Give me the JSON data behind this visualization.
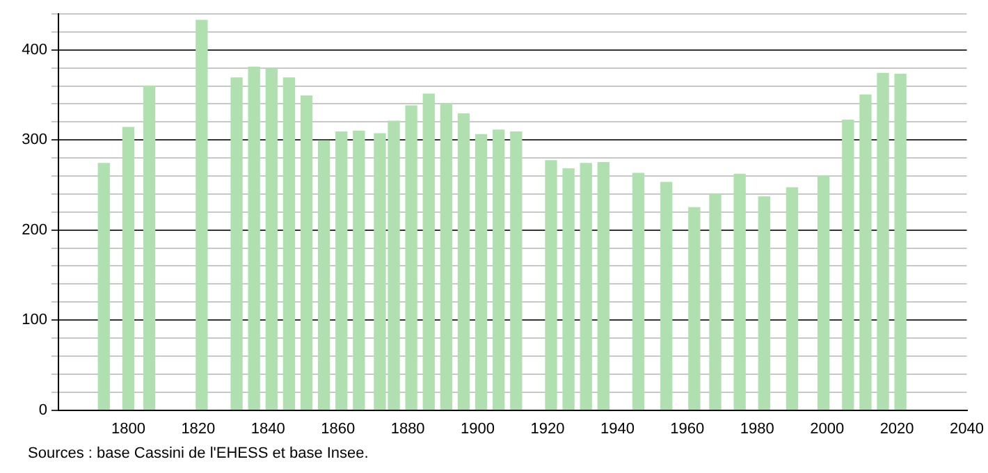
{
  "chart_data": {
    "type": "bar",
    "x": [
      1793,
      1800,
      1806,
      1821,
      1831,
      1836,
      1841,
      1846,
      1851,
      1856,
      1861,
      1866,
      1872,
      1876,
      1881,
      1886,
      1891,
      1896,
      1901,
      1906,
      1911,
      1921,
      1926,
      1931,
      1936,
      1946,
      1954,
      1962,
      1968,
      1975,
      1982,
      1990,
      1999,
      2006,
      2011,
      2016,
      2021
    ],
    "values": [
      274,
      314,
      360,
      433,
      369,
      381,
      379,
      369,
      349,
      299,
      309,
      310,
      307,
      321,
      338,
      351,
      340,
      329,
      306,
      311,
      309,
      277,
      268,
      274,
      275,
      263,
      253,
      225,
      240,
      262,
      237,
      247,
      260,
      322,
      350,
      374,
      373
    ],
    "color": "#b0e0b0",
    "xlim": [
      1780,
      2040
    ],
    "xticks": [
      {
        "value": 1780,
        "label": null
      },
      1800,
      1820,
      1840,
      1860,
      1880,
      1900,
      1920,
      1940,
      1960,
      1980,
      2000,
      2020,
      2040
    ],
    "ylim": [
      0,
      440
    ],
    "yticks": [
      0,
      {
        "value": 20,
        "label": null
      },
      {
        "value": 40,
        "label": null
      },
      {
        "value": 60,
        "label": null
      },
      {
        "value": 80,
        "label": null
      },
      100,
      {
        "value": 120,
        "label": null
      },
      {
        "value": 140,
        "label": null
      },
      {
        "value": 160,
        "label": null
      },
      {
        "value": 180,
        "label": null
      },
      200,
      {
        "value": 220,
        "label": null
      },
      {
        "value": 240,
        "label": null
      },
      {
        "value": 260,
        "label": null
      },
      {
        "value": 280,
        "label": null
      },
      300,
      {
        "value": 320,
        "label": null
      },
      {
        "value": 340,
        "label": null
      },
      {
        "value": 360,
        "label": null
      },
      {
        "value": 380,
        "label": null
      },
      400,
      {
        "value": 420,
        "label": null
      },
      {
        "value": 440,
        "label": null
      }
    ],
    "grid": "y",
    "legend": false,
    "annotations": [
      "Sources : base Cassini de l'EHESS et base Insee."
    ]
  }
}
